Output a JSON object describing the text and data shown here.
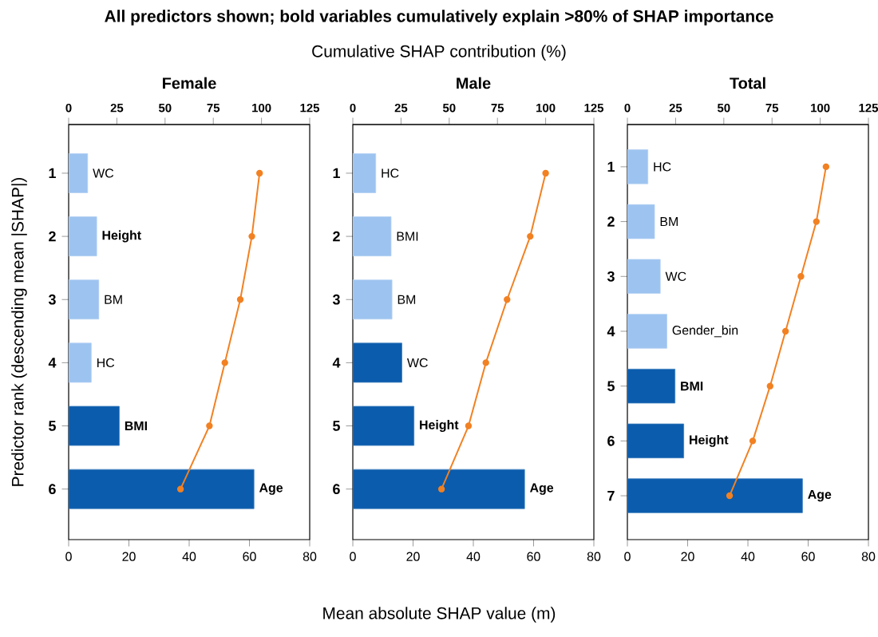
{
  "chart_data": [
    {
      "type": "bar",
      "orientation": "horizontal",
      "title": "Female",
      "ylabel": "Predictor rank (descending mean |SHAP|)",
      "categories": [
        "1",
        "2",
        "3",
        "4",
        "5",
        "6"
      ],
      "xlim": [
        0,
        80
      ],
      "xticks": [
        0,
        20,
        40,
        60,
        80
      ],
      "x2lim": [
        0,
        125
      ],
      "x2ticks": [
        0,
        25,
        50,
        75,
        100,
        125
      ],
      "series": [
        {
          "values": [
            6.3,
            9.3,
            10,
            7.5,
            16.8,
            61.5
          ],
          "colors": [
            "#9dc3f0",
            "#9dc3f0",
            "#9dc3f0",
            "#9dc3f0",
            "#0b5cad",
            "#0b5cad"
          ]
        },
        {
          "type": "line",
          "axis": "x2",
          "color": "#f28122",
          "marker": "circle",
          "values": [
            99,
            95,
            89,
            81,
            73,
            58
          ]
        }
      ],
      "annotations": [
        {
          "text": "WC",
          "x": 6.3,
          "y": "1"
        },
        {
          "text": "**Height**",
          "x": 9.3,
          "y": "2"
        },
        {
          "text": "BM",
          "x": 10,
          "y": "3"
        },
        {
          "text": "HC",
          "x": 7.5,
          "y": "4"
        },
        {
          "text": "**BMI**",
          "x": 16.8,
          "y": "5"
        },
        {
          "text": "**Age**",
          "x": 61.5,
          "y": "6"
        }
      ]
    },
    {
      "type": "bar",
      "orientation": "horizontal",
      "title": "Male",
      "xlabel": "Mean absolute SHAP value (m)",
      "x2label": "Cumulative SHAP contribution (%)",
      "categories": [
        "1",
        "2",
        "3",
        "4",
        "5",
        "6"
      ],
      "xlim": [
        0,
        80
      ],
      "xticks": [
        0,
        20,
        40,
        60,
        80
      ],
      "x2lim": [
        0,
        125
      ],
      "x2ticks": [
        0,
        25,
        50,
        75,
        100,
        125
      ],
      "series": [
        {
          "values": [
            7.6,
            12.7,
            13,
            16.3,
            20.3,
            57
          ],
          "colors": [
            "#9dc3f0",
            "#9dc3f0",
            "#9dc3f0",
            "#0b5cad",
            "#0b5cad",
            "#0b5cad"
          ]
        },
        {
          "type": "line",
          "axis": "x2",
          "color": "#f28122",
          "marker": "circle",
          "values": [
            100,
            92,
            80,
            69,
            60,
            46
          ]
        }
      ],
      "annotations": [
        "All predictors shown; bold variables cumulatively explain >80% of SHAP importance",
        {
          "text": "HC",
          "x": 7.6,
          "y": "1"
        },
        {
          "text": "BMI",
          "x": 12.7,
          "y": "2"
        },
        {
          "text": "BM",
          "x": 13,
          "y": "3"
        },
        {
          "text": "WC",
          "x": 16.3,
          "y": "4"
        },
        {
          "text": "**Height**",
          "x": 20.3,
          "y": "5"
        },
        {
          "text": "**Age**",
          "x": 57,
          "y": "6"
        }
      ]
    },
    {
      "type": "bar",
      "orientation": "horizontal",
      "title": "Total",
      "categories": [
        "1",
        "2",
        "3",
        "4",
        "5",
        "6",
        "7"
      ],
      "xlim": [
        0,
        80
      ],
      "xticks": [
        0,
        20,
        40,
        60,
        80
      ],
      "x2lim": [
        0,
        125
      ],
      "x2ticks": [
        0,
        25,
        50,
        75,
        100,
        125
      ],
      "series": [
        {
          "values": [
            6.8,
            9,
            10.9,
            13.1,
            15.8,
            18.7,
            58.1
          ],
          "colors": [
            "#9dc3f0",
            "#9dc3f0",
            "#9dc3f0",
            "#9dc3f0",
            "#0b5cad",
            "#0b5cad",
            "#0b5cad"
          ]
        },
        {
          "type": "line",
          "axis": "x2",
          "color": "#f28122",
          "marker": "circle",
          "values": [
            103,
            98,
            90,
            82,
            74,
            65,
            53
          ]
        }
      ],
      "annotations": [
        {
          "text": "HC",
          "x": 6.8,
          "y": "1"
        },
        {
          "text": "BM",
          "x": 9,
          "y": "2"
        },
        {
          "text": "WC",
          "x": 10.9,
          "y": "3"
        },
        {
          "text": "Gender_bin",
          "x": 13.1,
          "y": "4"
        },
        {
          "text": "**BMI**",
          "x": 15.8,
          "y": "5"
        },
        {
          "text": "**Height**",
          "x": 18.7,
          "y": "6"
        },
        {
          "text": "**Age**",
          "x": 58.1,
          "y": "7"
        }
      ]
    }
  ]
}
